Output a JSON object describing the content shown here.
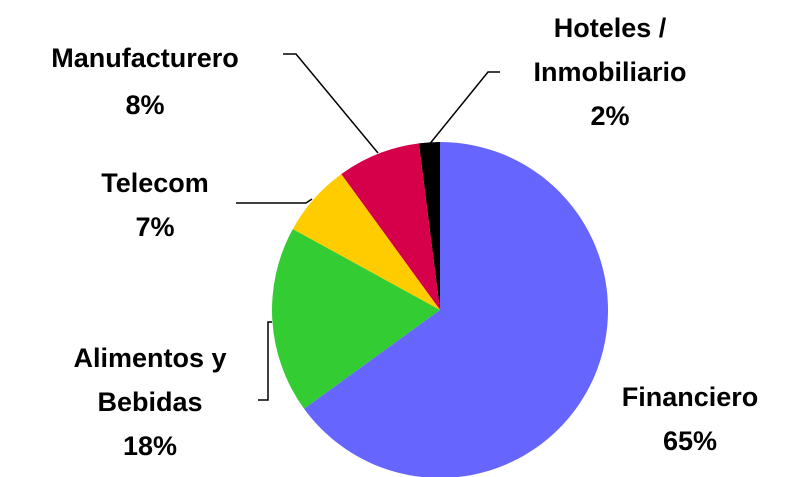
{
  "chart_data": {
    "type": "pie",
    "categories": [
      "Financiero",
      "Alimentos y Bebidas",
      "Telecom",
      "Manufacturero",
      "Hoteles / Inmobiliario"
    ],
    "values": [
      65,
      18,
      7,
      8,
      2
    ],
    "value_labels": [
      "65%",
      "18%",
      "7%",
      "8%",
      "2%"
    ],
    "colors": [
      "#6666ff",
      "#33cc33",
      "#ffcc00",
      "#d6004a",
      "#000000"
    ]
  }
}
